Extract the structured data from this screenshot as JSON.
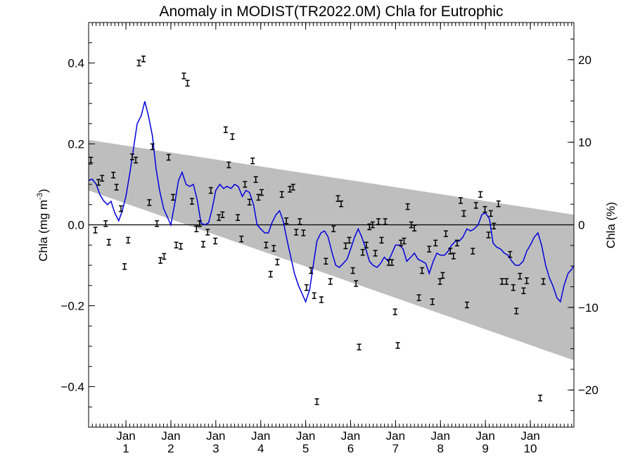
{
  "chart_data": {
    "type": "line",
    "title": "Anomaly in MODIST(TR2022.0M) Chla for Eutrophic",
    "ylabel_base": "Chla (mg m",
    "ylabel_sup": "-3",
    "ylabel_end": ")",
    "y2label": "Chla (%)",
    "xlim": [
      0,
      10.8
    ],
    "ylim": [
      -0.5,
      0.5
    ],
    "y2lim": [
      -24.5,
      24.5
    ],
    "yticks": [
      -0.4,
      -0.2,
      0.0,
      0.2,
      0.4
    ],
    "ytick_labels": [
      "−0.4",
      "−0.2",
      "0.0",
      "0.2",
      "0.4"
    ],
    "y2ticks": [
      -20,
      -10,
      0,
      10,
      20
    ],
    "y2tick_labels": [
      "−20",
      "−10",
      "0",
      "10",
      "20"
    ],
    "xtick_labels": [
      {
        "month": "Jan",
        "year": "1",
        "x": 0.83
      },
      {
        "month": "Jan",
        "year": "2",
        "x": 1.83
      },
      {
        "month": "Jan",
        "year": "3",
        "x": 2.83
      },
      {
        "month": "Jan",
        "year": "4",
        "x": 3.83
      },
      {
        "month": "Jan",
        "year": "5",
        "x": 4.83
      },
      {
        "month": "Jan",
        "year": "6",
        "x": 5.83
      },
      {
        "month": "Jan",
        "year": "7",
        "x": 6.83
      },
      {
        "month": "Jan",
        "year": "8",
        "x": 7.83
      },
      {
        "month": "Jan",
        "year": "9",
        "x": 8.83
      },
      {
        "month": "Jan",
        "year": "10",
        "x": 9.83
      }
    ],
    "band": {
      "upper": [
        [
          0,
          0.21
        ],
        [
          10.8,
          0.025
        ]
      ],
      "lower": [
        [
          0,
          0.085
        ],
        [
          10.8,
          -0.335
        ]
      ],
      "color": "#bebebe"
    },
    "zero_line": 0.0,
    "series": [
      {
        "kind": "line",
        "color": "#0000dd",
        "points": [
          [
            0,
            0.11
          ],
          [
            0.08,
            0.113
          ],
          [
            0.17,
            0.1
          ],
          [
            0.25,
            0.075
          ],
          [
            0.33,
            0.06
          ],
          [
            0.42,
            0.05
          ],
          [
            0.5,
            0.058
          ],
          [
            0.58,
            0.03
          ],
          [
            0.67,
            0.01
          ],
          [
            0.75,
            0.035
          ],
          [
            0.83,
            0.07
          ],
          [
            0.92,
            0.13
          ],
          [
            1.0,
            0.19
          ],
          [
            1.08,
            0.25
          ],
          [
            1.17,
            0.27
          ],
          [
            1.25,
            0.305
          ],
          [
            1.33,
            0.27
          ],
          [
            1.42,
            0.22
          ],
          [
            1.5,
            0.14
          ],
          [
            1.58,
            0.085
          ],
          [
            1.67,
            0.04
          ],
          [
            1.75,
            0.02
          ],
          [
            1.83,
            0.0
          ],
          [
            1.92,
            0.055
          ],
          [
            2.0,
            0.11
          ],
          [
            2.08,
            0.13
          ],
          [
            2.17,
            0.1
          ],
          [
            2.25,
            0.095
          ],
          [
            2.33,
            0.1
          ],
          [
            2.42,
            0.06
          ],
          [
            2.5,
            0.005
          ],
          [
            2.58,
            0.0
          ],
          [
            2.67,
            0.005
          ],
          [
            2.75,
            0.04
          ],
          [
            2.83,
            0.085
          ],
          [
            2.92,
            0.1
          ],
          [
            3.0,
            0.09
          ],
          [
            3.08,
            0.095
          ],
          [
            3.17,
            0.09
          ],
          [
            3.25,
            0.1
          ],
          [
            3.33,
            0.095
          ],
          [
            3.42,
            0.07
          ],
          [
            3.5,
            0.085
          ],
          [
            3.58,
            0.08
          ],
          [
            3.67,
            0.05
          ],
          [
            3.75,
            0.0
          ],
          [
            3.83,
            -0.01
          ],
          [
            3.92,
            -0.02
          ],
          [
            4.0,
            -0.02
          ],
          [
            4.08,
            0.005
          ],
          [
            4.17,
            0.025
          ],
          [
            4.25,
            0.035
          ],
          [
            4.33,
            0.01
          ],
          [
            4.42,
            -0.04
          ],
          [
            4.5,
            -0.08
          ],
          [
            4.58,
            -0.12
          ],
          [
            4.67,
            -0.15
          ],
          [
            4.75,
            -0.17
          ],
          [
            4.83,
            -0.19
          ],
          [
            4.92,
            -0.16
          ],
          [
            5.0,
            -0.1
          ],
          [
            5.08,
            -0.04
          ],
          [
            5.17,
            -0.02
          ],
          [
            5.25,
            -0.015
          ],
          [
            5.33,
            -0.03
          ],
          [
            5.42,
            -0.07
          ],
          [
            5.5,
            -0.1
          ],
          [
            5.58,
            -0.105
          ],
          [
            5.67,
            -0.095
          ],
          [
            5.75,
            -0.085
          ],
          [
            5.83,
            -0.06
          ],
          [
            5.92,
            -0.03
          ],
          [
            6.0,
            -0.01
          ],
          [
            6.08,
            -0.03
          ],
          [
            6.17,
            -0.06
          ],
          [
            6.25,
            -0.09
          ],
          [
            6.33,
            -0.1
          ],
          [
            6.42,
            -0.105
          ],
          [
            6.5,
            -0.095
          ],
          [
            6.58,
            -0.08
          ],
          [
            6.67,
            -0.09
          ],
          [
            6.75,
            -0.07
          ],
          [
            6.83,
            -0.05
          ],
          [
            6.92,
            -0.05
          ],
          [
            7.0,
            -0.06
          ],
          [
            7.08,
            -0.09
          ],
          [
            7.17,
            -0.08
          ],
          [
            7.25,
            -0.07
          ],
          [
            7.33,
            -0.085
          ],
          [
            7.42,
            -0.09
          ],
          [
            7.5,
            -0.095
          ],
          [
            7.58,
            -0.12
          ],
          [
            7.67,
            -0.09
          ],
          [
            7.75,
            -0.07
          ],
          [
            7.83,
            -0.075
          ],
          [
            7.92,
            -0.075
          ],
          [
            8.0,
            -0.065
          ],
          [
            8.08,
            -0.05
          ],
          [
            8.17,
            -0.04
          ],
          [
            8.25,
            -0.04
          ],
          [
            8.33,
            -0.03
          ],
          [
            8.42,
            -0.01
          ],
          [
            8.5,
            -0.015
          ],
          [
            8.58,
            -0.01
          ],
          [
            8.67,
            0.0
          ],
          [
            8.75,
            0.025
          ],
          [
            8.83,
            0.03
          ],
          [
            8.92,
            0.015
          ],
          [
            9.0,
            -0.045
          ],
          [
            9.08,
            -0.055
          ],
          [
            9.17,
            -0.06
          ],
          [
            9.25,
            -0.07
          ],
          [
            9.33,
            -0.075
          ],
          [
            9.42,
            -0.09
          ],
          [
            9.5,
            -0.1
          ],
          [
            9.58,
            -0.1
          ],
          [
            9.67,
            -0.09
          ],
          [
            9.75,
            -0.065
          ],
          [
            9.83,
            -0.05
          ],
          [
            9.92,
            -0.03
          ],
          [
            10.0,
            -0.02
          ],
          [
            10.08,
            -0.05
          ],
          [
            10.17,
            -0.1
          ],
          [
            10.25,
            -0.13
          ],
          [
            10.33,
            -0.15
          ],
          [
            10.42,
            -0.18
          ],
          [
            10.5,
            -0.19
          ],
          [
            10.58,
            -0.15
          ],
          [
            10.67,
            -0.12
          ],
          [
            10.75,
            -0.11
          ],
          [
            10.8,
            -0.1
          ]
        ]
      },
      {
        "kind": "errorbar",
        "color": "#000000",
        "points": [
          [
            0.05,
            0.16
          ],
          [
            0.15,
            -0.013
          ],
          [
            0.22,
            0.105
          ],
          [
            0.3,
            0.115
          ],
          [
            0.38,
            0.003
          ],
          [
            0.45,
            -0.043
          ],
          [
            0.55,
            0.123
          ],
          [
            0.62,
            0.093
          ],
          [
            0.72,
            0.04
          ],
          [
            0.8,
            -0.103
          ],
          [
            0.88,
            -0.038
          ],
          [
            0.97,
            0.168
          ],
          [
            1.05,
            0.16
          ],
          [
            1.12,
            0.4
          ],
          [
            1.22,
            0.41
          ],
          [
            1.35,
            0.055
          ],
          [
            1.42,
            0.193
          ],
          [
            1.52,
            0.003
          ],
          [
            1.6,
            -0.088
          ],
          [
            1.68,
            -0.078
          ],
          [
            1.78,
            0.167
          ],
          [
            1.88,
            0.068
          ],
          [
            1.95,
            -0.05
          ],
          [
            2.05,
            -0.053
          ],
          [
            2.12,
            0.368
          ],
          [
            2.2,
            0.35
          ],
          [
            2.3,
            0.058
          ],
          [
            2.4,
            -0.01
          ],
          [
            2.47,
            0.003
          ],
          [
            2.55,
            -0.048
          ],
          [
            2.65,
            -0.018
          ],
          [
            2.72,
            0.085
          ],
          [
            2.82,
            -0.04
          ],
          [
            2.9,
            0.018
          ],
          [
            2.98,
            0.025
          ],
          [
            3.05,
            0.235
          ],
          [
            3.12,
            0.148
          ],
          [
            3.2,
            0.218
          ],
          [
            3.32,
            0.018
          ],
          [
            3.4,
            -0.035
          ],
          [
            3.48,
            0.1
          ],
          [
            3.58,
            0.056
          ],
          [
            3.65,
            0.158
          ],
          [
            3.72,
            0.112
          ],
          [
            3.78,
            0.068
          ],
          [
            3.85,
            0.08
          ],
          [
            3.95,
            -0.05
          ],
          [
            4.05,
            -0.122
          ],
          [
            4.12,
            -0.058
          ],
          [
            4.2,
            -0.092
          ],
          [
            4.3,
            0.075
          ],
          [
            4.4,
            0.01
          ],
          [
            4.48,
            0.088
          ],
          [
            4.55,
            0.093
          ],
          [
            4.62,
            -0.018
          ],
          [
            4.7,
            0.008
          ],
          [
            4.78,
            -0.02
          ],
          [
            4.85,
            -0.155
          ],
          [
            4.95,
            -0.113
          ],
          [
            5.02,
            -0.175
          ],
          [
            5.08,
            -0.437
          ],
          [
            5.18,
            -0.185
          ],
          [
            5.28,
            -0.09
          ],
          [
            5.38,
            -0.14
          ],
          [
            5.45,
            -0.01
          ],
          [
            5.55,
            0.065
          ],
          [
            5.62,
            0.052
          ],
          [
            5.72,
            -0.052
          ],
          [
            5.8,
            -0.038
          ],
          [
            5.88,
            -0.113
          ],
          [
            5.95,
            -0.145
          ],
          [
            6.02,
            -0.302
          ],
          [
            6.1,
            -0.068
          ],
          [
            6.18,
            -0.05
          ],
          [
            6.25,
            -0.005
          ],
          [
            6.32,
            0.0
          ],
          [
            6.38,
            -0.07
          ],
          [
            6.45,
            0.008
          ],
          [
            6.52,
            -0.038
          ],
          [
            6.6,
            0.008
          ],
          [
            6.68,
            -0.093
          ],
          [
            6.75,
            -0.093
          ],
          [
            6.82,
            -0.215
          ],
          [
            6.88,
            -0.298
          ],
          [
            6.95,
            -0.045
          ],
          [
            7.02,
            -0.04
          ],
          [
            7.1,
            0.045
          ],
          [
            7.18,
            0.0
          ],
          [
            7.25,
            -0.008
          ],
          [
            7.35,
            -0.18
          ],
          [
            7.42,
            -0.113
          ],
          [
            7.58,
            -0.06
          ],
          [
            7.65,
            -0.19
          ],
          [
            7.72,
            -0.045
          ],
          [
            7.82,
            -0.14
          ],
          [
            7.88,
            -0.125
          ],
          [
            7.95,
            -0.022
          ],
          [
            8.05,
            -0.065
          ],
          [
            8.12,
            -0.077
          ],
          [
            8.2,
            -0.045
          ],
          [
            8.28,
            0.06
          ],
          [
            8.35,
            0.028
          ],
          [
            8.42,
            -0.198
          ],
          [
            8.55,
            -0.065
          ],
          [
            8.62,
            0.048
          ],
          [
            8.72,
            0.075
          ],
          [
            8.82,
            0.038
          ],
          [
            8.9,
            -0.025
          ],
          [
            8.95,
            0.028
          ],
          [
            9.02,
            -0.003
          ],
          [
            9.12,
            0.052
          ],
          [
            9.2,
            -0.14
          ],
          [
            9.3,
            -0.14
          ],
          [
            9.38,
            -0.073
          ],
          [
            9.45,
            -0.155
          ],
          [
            9.52,
            -0.213
          ],
          [
            9.6,
            -0.127
          ],
          [
            9.68,
            -0.163
          ],
          [
            9.75,
            -0.138
          ],
          [
            10.05,
            -0.428
          ],
          [
            10.12,
            -0.14
          ]
        ]
      }
    ],
    "grid": false,
    "legend": "none"
  }
}
